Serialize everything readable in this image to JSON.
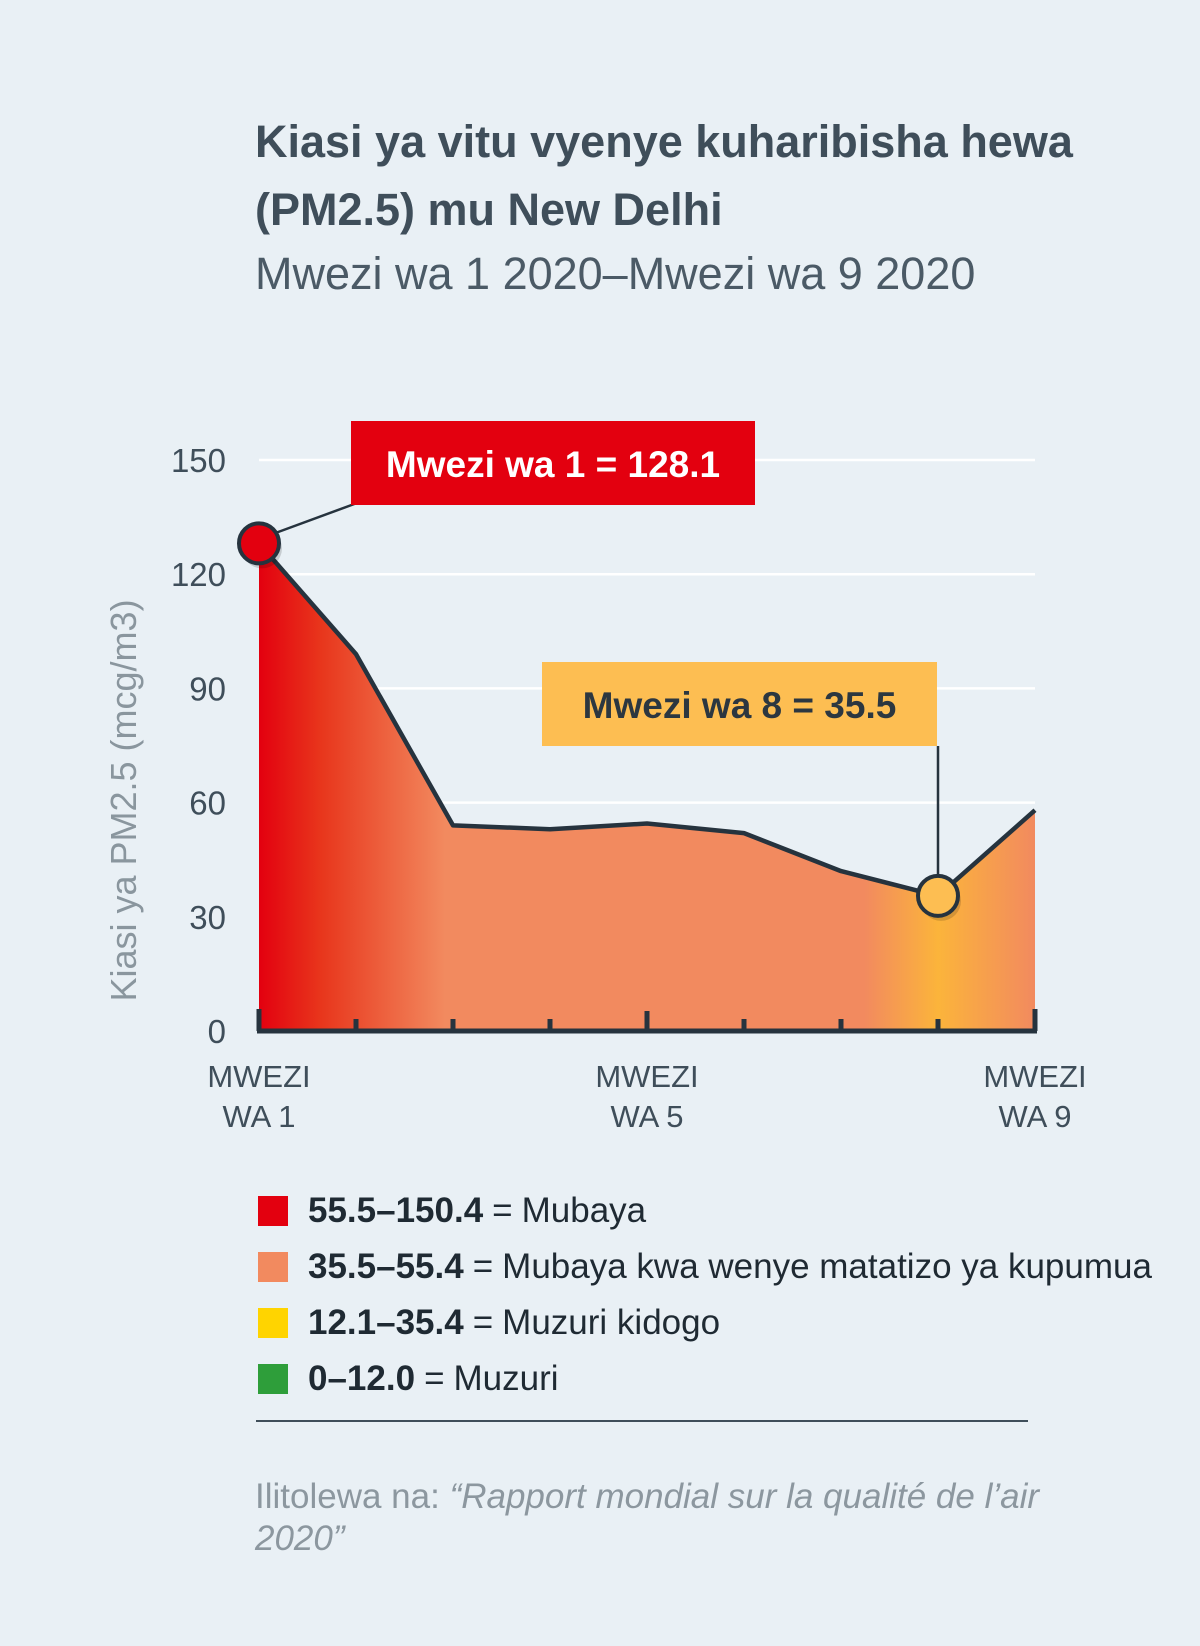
{
  "title": "Kiasi ya vitu vyenye kuharibisha hewa (PM2.5) mu New Delhi",
  "subtitle": "Mwezi wa 1 2020–Mwezi wa 9 2020",
  "colors": {
    "background": "#e9f0f5",
    "text": "#3f4e5a",
    "line": "#26333e",
    "red": "#e3000f",
    "orange": "#f28a5f",
    "yellow": "#fbb43b",
    "green": "#2e9e3a"
  },
  "chart_data": {
    "type": "area",
    "title": "",
    "subtitle": "",
    "ylabel": "Kiasi ya PM2.5 (mcg/m3)",
    "xlabel": "",
    "ylim": [
      0,
      150
    ],
    "yticks": [
      "0",
      "30",
      "60",
      "90",
      "120",
      "150"
    ],
    "x": [
      1,
      2,
      3,
      4,
      5,
      6,
      7,
      8,
      9
    ],
    "x_tick_labels": [
      {
        "x": 1,
        "lines": [
          "MWEZI",
          "WA 1"
        ]
      },
      {
        "x": 5,
        "lines": [
          "MWEZI",
          "WA 5"
        ]
      },
      {
        "x": 9,
        "lines": [
          "MWEZI",
          "WA 9"
        ]
      }
    ],
    "series": [
      {
        "values": [
          128.1,
          99,
          54,
          53,
          54.5,
          52,
          42,
          35.5,
          58
        ]
      }
    ],
    "grid": true,
    "annotations": [
      {
        "x": 1,
        "y": 128.1,
        "text": "Mwezi wa 1 = 128.1",
        "color": "#e3000f",
        "text_color": "#ffffff"
      },
      {
        "x": 8,
        "y": 35.5,
        "text": "Mwezi wa 8 = 35.5",
        "color": "#fdbe52",
        "text_color": "#2c3740"
      }
    ]
  },
  "legend": [
    {
      "range": "55.5–150.4",
      "eq": "=",
      "label": "Mubaya",
      "color": "#e3000f"
    },
    {
      "range": "35.5–55.4",
      "eq": "=",
      "label": "Mubaya kwa wenye matatizo ya kupumua",
      "color": "#f28a5f"
    },
    {
      "range": "12.1–35.4",
      "eq": "=",
      "label": "Muzuri kidogo",
      "color": "#ffd400"
    },
    {
      "range": "0–12.0",
      "eq": "=",
      "label": "Muzuri",
      "color": "#2e9e3a"
    }
  ],
  "source": {
    "prefix": "Ilitolewa na: ",
    "work": "“Rapport mondial sur la qualité de l’air 2020”"
  }
}
